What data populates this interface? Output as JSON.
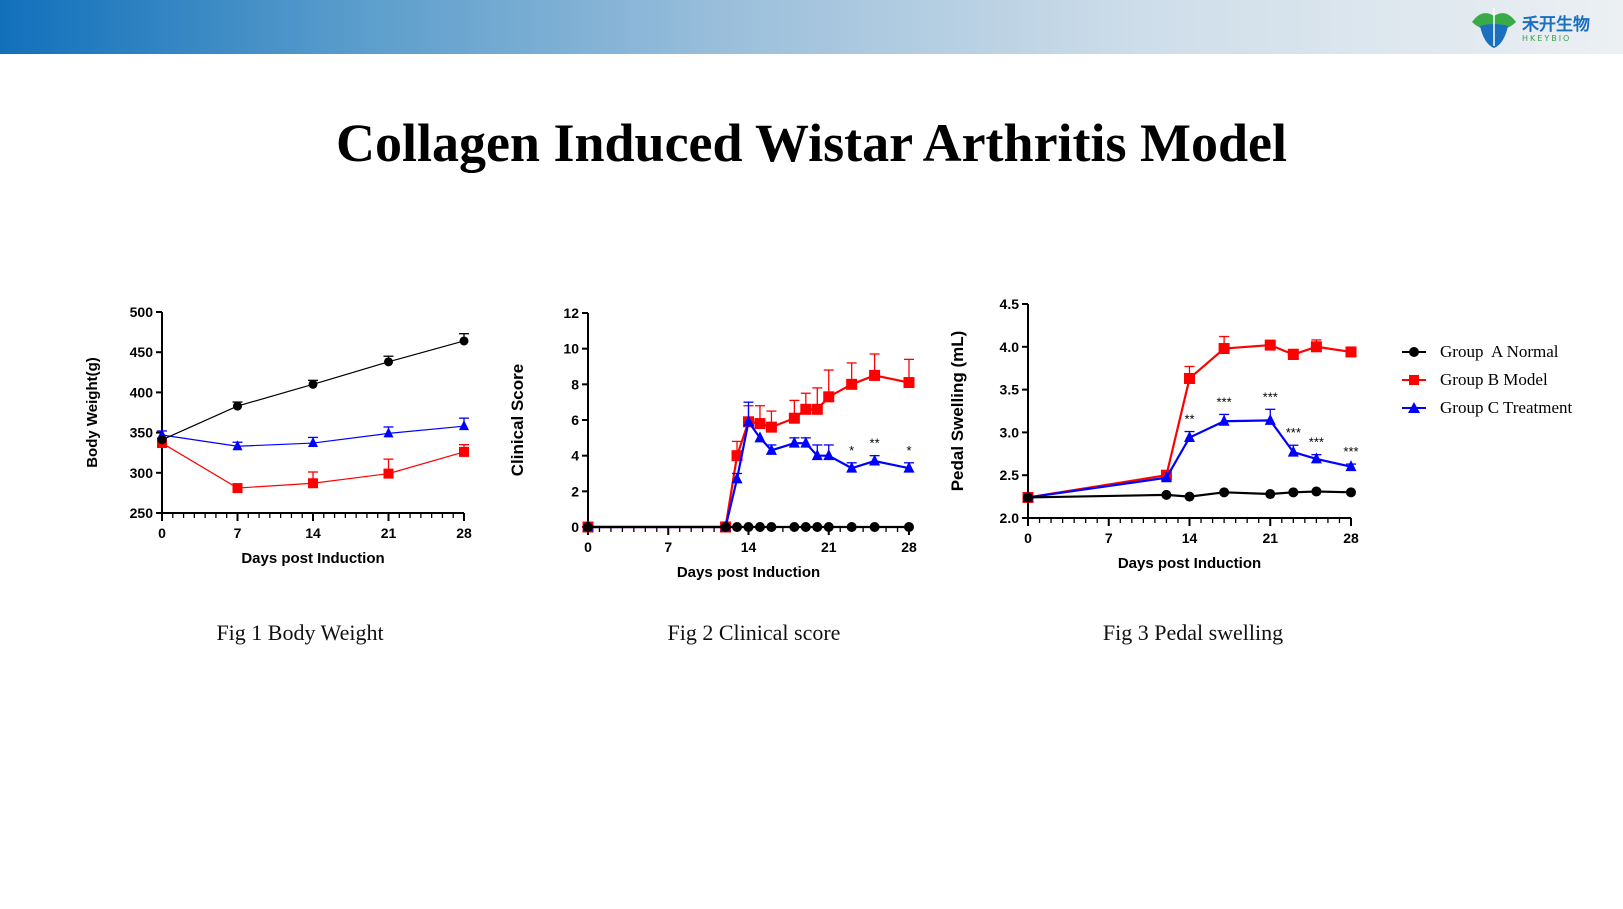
{
  "header": {
    "logo_cn": "禾开生物",
    "logo_en": "HKEYBIO"
  },
  "title": "Collagen Induced Wistar Arthritis Model",
  "legend": [
    {
      "label": "Group  A Normal",
      "color": "#000000",
      "marker": "circle"
    },
    {
      "label": "Group B Model",
      "color": "#ff0000",
      "marker": "square"
    },
    {
      "label": "Group C Treatment",
      "color": "#0000ff",
      "marker": "triangle"
    }
  ],
  "chart_data": [
    {
      "type": "line",
      "caption": "Fig 1 Body Weight",
      "xlabel": "Days post Induction",
      "ylabel": "Body Weight(g)",
      "xlim": [
        0,
        28
      ],
      "ylim": [
        250,
        500
      ],
      "xticks": [
        0,
        7,
        14,
        21,
        28
      ],
      "yticks": [
        250,
        300,
        350,
        400,
        450,
        500
      ],
      "x": [
        0,
        7,
        14,
        21,
        28
      ],
      "series": [
        {
          "name": "Group  A Normal",
          "values": [
            341,
            383,
            410,
            438,
            464
          ],
          "errors": [
            2,
            5,
            5,
            7,
            9
          ]
        },
        {
          "name": "Group B Model",
          "values": [
            337,
            281,
            287,
            299,
            326
          ],
          "errors": [
            2,
            5,
            14,
            18,
            9
          ]
        },
        {
          "name": "Group C Treatment",
          "values": [
            347,
            333,
            337,
            349,
            358
          ],
          "errors": [
            5,
            5,
            7,
            8,
            10
          ]
        }
      ],
      "annotations": []
    },
    {
      "type": "line",
      "caption": "Fig 2 Clinical score",
      "xlabel": "Days post Induction",
      "ylabel": "Clinical Score",
      "xlim": [
        0,
        28
      ],
      "ylim": [
        0,
        12
      ],
      "xticks": [
        0,
        7,
        14,
        21,
        28
      ],
      "yticks": [
        0,
        2,
        4,
        6,
        8,
        10,
        12
      ],
      "x": [
        0,
        12,
        13,
        14,
        15,
        16,
        18,
        19,
        20,
        21,
        23,
        25,
        28
      ],
      "series": [
        {
          "name": "Group  A Normal",
          "values": [
            0,
            0,
            0,
            0,
            0,
            0,
            0,
            0,
            0,
            0,
            0,
            0,
            0
          ],
          "errors": [
            0,
            0,
            0,
            0,
            0,
            0,
            0,
            0,
            0,
            0,
            0,
            0,
            0
          ]
        },
        {
          "name": "Group B Model",
          "values": [
            0,
            0,
            4.0,
            5.9,
            5.8,
            5.6,
            6.1,
            6.6,
            6.6,
            7.3,
            8.0,
            8.5,
            8.1
          ],
          "errors": [
            0,
            0,
            0.8,
            0.9,
            1.0,
            0.9,
            1.0,
            0.9,
            1.2,
            1.5,
            1.2,
            1.2,
            1.3
          ]
        },
        {
          "name": "Group C Treatment",
          "values": [
            0,
            0,
            2.7,
            5.9,
            5.0,
            4.3,
            4.7,
            4.7,
            4.0,
            4.0,
            3.3,
            3.7,
            3.3
          ],
          "errors": [
            0,
            0,
            0.3,
            1.1,
            0,
            0.3,
            0.3,
            0.3,
            0.6,
            0.6,
            0.3,
            0.3,
            0.3
          ]
        }
      ],
      "annotations": [
        {
          "x": 23,
          "text": "*"
        },
        {
          "x": 25,
          "text": "**"
        },
        {
          "x": 28,
          "text": "*"
        }
      ]
    },
    {
      "type": "line",
      "caption": "Fig 3 Pedal swelling",
      "xlabel": "Days post Induction",
      "ylabel": "Pedal Swelling (mL)",
      "xlim": [
        0,
        28
      ],
      "ylim": [
        2.0,
        4.5
      ],
      "xticks": [
        0,
        7,
        14,
        21,
        28
      ],
      "yticks": [
        "2.0",
        "2.5",
        "3.0",
        "3.5",
        "4.0",
        "4.5"
      ],
      "x": [
        0,
        12,
        14,
        17,
        21,
        23,
        25,
        28
      ],
      "series": [
        {
          "name": "Group  A Normal",
          "values": [
            2.24,
            2.27,
            2.25,
            2.3,
            2.28,
            2.3,
            2.31,
            2.3
          ],
          "errors": [
            0,
            0,
            0,
            0,
            0,
            0,
            0,
            0
          ]
        },
        {
          "name": "Group B Model",
          "values": [
            2.24,
            2.5,
            3.63,
            3.98,
            4.02,
            3.91,
            4.0,
            3.94
          ],
          "errors": [
            0,
            0,
            0.14,
            0.14,
            0.03,
            0.06,
            0.08,
            0.05
          ]
        },
        {
          "name": "Group C Treatment",
          "values": [
            2.24,
            2.47,
            2.94,
            3.13,
            3.14,
            2.77,
            2.69,
            2.6
          ],
          "errors": [
            0,
            0,
            0.07,
            0.08,
            0.13,
            0.08,
            0.05,
            0.03
          ]
        }
      ],
      "annotations": [
        {
          "x": 14,
          "text": "**"
        },
        {
          "x": 17,
          "text": "***"
        },
        {
          "x": 21,
          "text": "***"
        },
        {
          "x": 23,
          "text": "***"
        },
        {
          "x": 25,
          "text": "***"
        },
        {
          "x": 28,
          "text": "***"
        }
      ]
    }
  ]
}
